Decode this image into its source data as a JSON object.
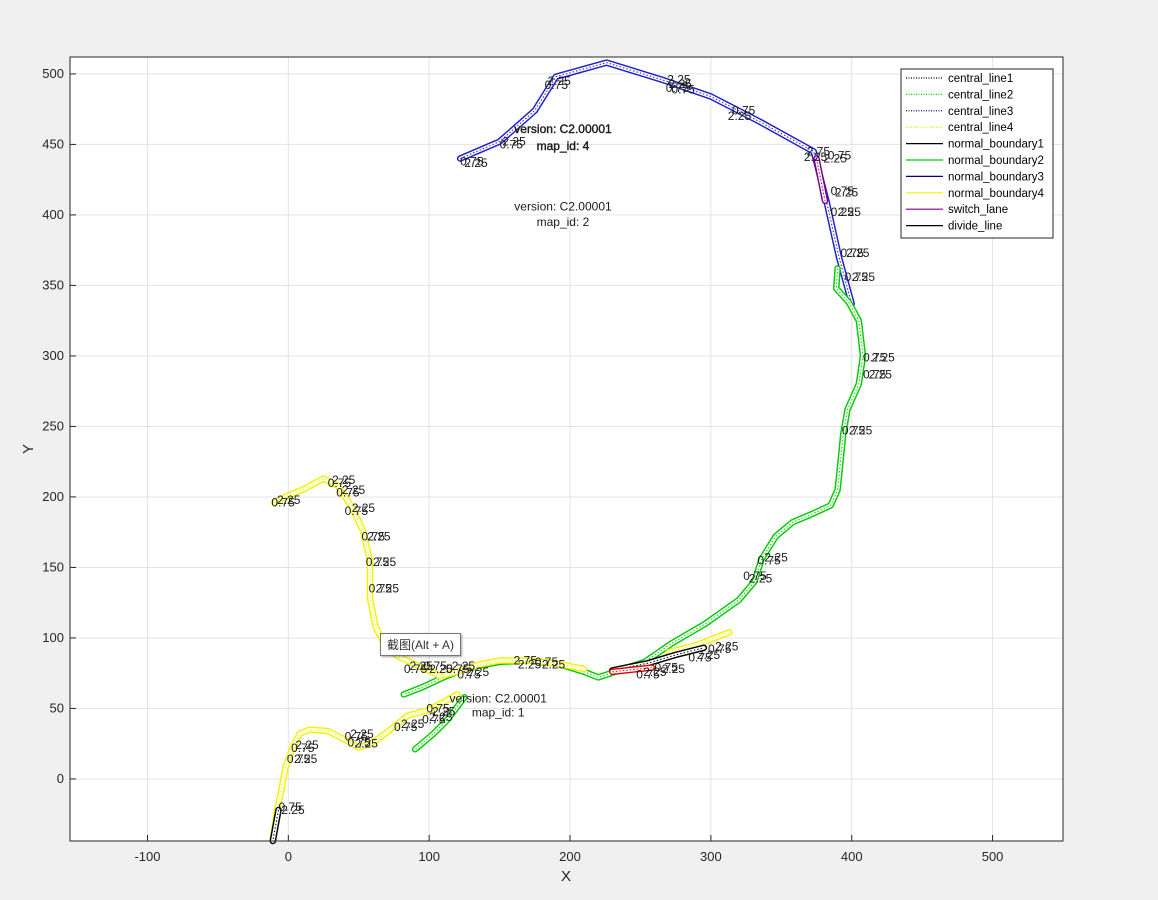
{
  "chart_data": {
    "type": "line",
    "xlabel": "X",
    "ylabel": "Y",
    "xlim": [
      -155,
      550
    ],
    "ylim": [
      -44,
      512
    ],
    "x_ticks": [
      -100,
      0,
      100,
      200,
      300,
      400,
      500
    ],
    "y_ticks": [
      0,
      50,
      100,
      150,
      200,
      250,
      300,
      350,
      400,
      450,
      500
    ],
    "grid": true,
    "legend_position": "top-right",
    "legend": [
      {
        "name": "central_line1",
        "color": "#000000",
        "style": "dotted"
      },
      {
        "name": "central_line2",
        "color": "#00cc00",
        "style": "dotted"
      },
      {
        "name": "central_line3",
        "color": "#000080",
        "style": "dotted"
      },
      {
        "name": "central_line4",
        "color": "#e6e600",
        "style": "dotted"
      },
      {
        "name": "normal_boundary1",
        "color": "#000000",
        "style": "solid"
      },
      {
        "name": "normal_boundary2",
        "color": "#00cc00",
        "style": "solid"
      },
      {
        "name": "normal_boundary3",
        "color": "#000080",
        "style": "solid"
      },
      {
        "name": "normal_boundary4",
        "color": "#f2f200",
        "style": "solid"
      },
      {
        "name": "switch_lane",
        "color": "#800080",
        "style": "solid"
      },
      {
        "name": "divide_line",
        "color": "#000000",
        "style": "solid"
      }
    ],
    "series": [
      {
        "color": "#1e1ecc",
        "points": [
          [
            122,
            440
          ],
          [
            150,
            452
          ],
          [
            175,
            474
          ],
          [
            190,
            498
          ],
          [
            226,
            508
          ],
          [
            265,
            496
          ],
          [
            300,
            484
          ],
          [
            335,
            466
          ],
          [
            373,
            445
          ],
          [
            382,
            410
          ],
          [
            391,
            370
          ],
          [
            400,
            337
          ]
        ]
      },
      {
        "color": "#00cc00",
        "points": [
          [
            390,
            362
          ],
          [
            389,
            348
          ],
          [
            398,
            338
          ],
          [
            405,
            325
          ],
          [
            408,
            300
          ],
          [
            405,
            280
          ],
          [
            397,
            262
          ],
          [
            394,
            245
          ],
          [
            392,
            225
          ],
          [
            390,
            205
          ],
          [
            385,
            194
          ],
          [
            372,
            188
          ],
          [
            358,
            182
          ],
          [
            346,
            172
          ],
          [
            336,
            156
          ],
          [
            331,
            140
          ],
          [
            320,
            127
          ],
          [
            296,
            110
          ],
          [
            272,
            96
          ],
          [
            253,
            83
          ],
          [
            232,
            76
          ],
          [
            220,
            72
          ],
          [
            210,
            76
          ],
          [
            190,
            82
          ],
          [
            170,
            84
          ],
          [
            150,
            83
          ],
          [
            128,
            79
          ],
          [
            110,
            72
          ],
          [
            95,
            65
          ],
          [
            82,
            60
          ]
        ]
      },
      {
        "color": "#00cc00",
        "points": [
          [
            125,
            58
          ],
          [
            113,
            42
          ],
          [
            103,
            32
          ],
          [
            90,
            21
          ]
        ]
      },
      {
        "color": "#f2f200",
        "points": [
          [
            -10,
            196
          ],
          [
            0,
            201
          ],
          [
            12,
            206
          ],
          [
            25,
            213
          ],
          [
            35,
            208
          ],
          [
            45,
            193
          ],
          [
            53,
            176
          ],
          [
            58,
            155
          ],
          [
            58,
            128
          ],
          [
            62,
            108
          ],
          [
            70,
            92
          ],
          [
            80,
            86
          ],
          [
            95,
            79
          ],
          [
            108,
            73
          ],
          [
            120,
            76
          ],
          [
            135,
            81
          ],
          [
            150,
            84
          ],
          [
            170,
            84
          ],
          [
            190,
            82
          ],
          [
            210,
            78
          ]
        ]
      },
      {
        "color": "#f2f200",
        "points": [
          [
            120,
            60
          ],
          [
            100,
            49
          ],
          [
            85,
            45
          ],
          [
            70,
            33
          ],
          [
            60,
            26
          ],
          [
            50,
            22
          ],
          [
            40,
            28
          ],
          [
            28,
            34
          ],
          [
            15,
            35
          ],
          [
            8,
            32
          ],
          [
            3,
            22
          ],
          [
            -2,
            8
          ],
          [
            -5,
            -8
          ],
          [
            -8,
            -22
          ],
          [
            -11,
            -44
          ]
        ]
      },
      {
        "color": "#f2f200",
        "points": [
          [
            270,
            90
          ],
          [
            290,
            95
          ],
          [
            313,
            104
          ]
        ]
      },
      {
        "color": "#000000",
        "points": [
          [
            -7,
            -22
          ],
          [
            -11,
            -44
          ]
        ]
      },
      {
        "color": "#000000",
        "points": [
          [
            230,
            77
          ],
          [
            255,
            82
          ],
          [
            275,
            88
          ],
          [
            295,
            93
          ]
        ]
      },
      {
        "color": "#e60000",
        "points": [
          [
            230,
            76
          ],
          [
            258,
            79
          ]
        ]
      },
      {
        "color": "#800080",
        "points": [
          [
            375,
            440
          ],
          [
            381,
            410
          ]
        ]
      }
    ],
    "annotations": [
      {
        "text": "version: C2.00001",
        "x": 195,
        "y": 461,
        "bold": true
      },
      {
        "text": "map_id: 4",
        "x": 195,
        "y": 449,
        "bold": true
      },
      {
        "text": "version: C2.00001",
        "x": 195,
        "y": 406,
        "bold": false
      },
      {
        "text": "map_id: 2",
        "x": 195,
        "y": 395,
        "bold": false
      },
      {
        "text": "version: C2.00001",
        "x": 149,
        "y": 57,
        "bold": false
      },
      {
        "text": "map_id: 1",
        "x": 149,
        "y": 47,
        "bold": false
      }
    ],
    "value_labels": [
      {
        "text": "0.75",
        "x": 122,
        "y": 438
      },
      {
        "text": "2.25",
        "x": 125,
        "y": 437
      },
      {
        "text": "0.75",
        "x": 150,
        "y": 450
      },
      {
        "text": "2.25",
        "x": 152,
        "y": 452
      },
      {
        "text": "0.75",
        "x": 182,
        "y": 492
      },
      {
        "text": "2.25",
        "x": 184,
        "y": 495
      },
      {
        "text": "0.75",
        "x": 268,
        "y": 490
      },
      {
        "text": "2.25",
        "x": 270,
        "y": 493
      },
      {
        "text": "0.75",
        "x": 272,
        "y": 489
      },
      {
        "text": "2.25",
        "x": 269,
        "y": 496
      },
      {
        "text": "0.75",
        "x": 315,
        "y": 474
      },
      {
        "text": "2.25",
        "x": 312,
        "y": 470
      },
      {
        "text": "2.75",
        "x": 368,
        "y": 445
      },
      {
        "text": "2.25",
        "x": 366,
        "y": 441
      },
      {
        "text": "0.75",
        "x": 383,
        "y": 442
      },
      {
        "text": "2.25",
        "x": 380,
        "y": 440
      },
      {
        "text": "0.75",
        "x": 385,
        "y": 417
      },
      {
        "text": "2.25",
        "x": 388,
        "y": 416
      },
      {
        "text": "0.25",
        "x": 385,
        "y": 402
      },
      {
        "text": "2.25",
        "x": 390,
        "y": 402
      },
      {
        "text": "0.75",
        "x": 392,
        "y": 373
      },
      {
        "text": "2.25",
        "x": 396,
        "y": 373
      },
      {
        "text": "0.75",
        "x": 395,
        "y": 356
      },
      {
        "text": "2.25",
        "x": 400,
        "y": 356
      },
      {
        "text": "0.75",
        "x": 408,
        "y": 299
      },
      {
        "text": "2.25",
        "x": 414,
        "y": 299
      },
      {
        "text": "0.75",
        "x": 408,
        "y": 287
      },
      {
        "text": "2.25",
        "x": 412,
        "y": 287
      },
      {
        "text": "0.75",
        "x": 393,
        "y": 247
      },
      {
        "text": "2.25",
        "x": 398,
        "y": 247
      },
      {
        "text": "0.75",
        "x": 323,
        "y": 144
      },
      {
        "text": "2.25",
        "x": 327,
        "y": 142
      },
      {
        "text": "0.75",
        "x": 333,
        "y": 155
      },
      {
        "text": "2.25",
        "x": 338,
        "y": 157
      },
      {
        "text": "0.75",
        "x": 28,
        "y": 210
      },
      {
        "text": "2.25",
        "x": 31,
        "y": 212
      },
      {
        "text": "0.75",
        "x": 34,
        "y": 203
      },
      {
        "text": "2.25",
        "x": 38,
        "y": 205
      },
      {
        "text": "0.75",
        "x": 40,
        "y": 190
      },
      {
        "text": "2.25",
        "x": 45,
        "y": 192
      },
      {
        "text": "0.75",
        "x": 52,
        "y": 172
      },
      {
        "text": "2.25",
        "x": 56,
        "y": 172
      },
      {
        "text": "0.75",
        "x": 55,
        "y": 154
      },
      {
        "text": "2.25",
        "x": 60,
        "y": 154
      },
      {
        "text": "0.75",
        "x": 57,
        "y": 135
      },
      {
        "text": "2.25",
        "x": 62,
        "y": 135
      },
      {
        "text": "0.75",
        "x": -12,
        "y": 196
      },
      {
        "text": "2.25",
        "x": -8,
        "y": 198
      },
      {
        "text": "0.75",
        "x": 2,
        "y": 22
      },
      {
        "text": "2.25",
        "x": 5,
        "y": 24
      },
      {
        "text": "0.75",
        "x": -1,
        "y": 14
      },
      {
        "text": "2.25",
        "x": 4,
        "y": 14
      },
      {
        "text": "0.75",
        "x": -7,
        "y": -20
      },
      {
        "text": "2.25",
        "x": -5,
        "y": -22
      },
      {
        "text": "0.75",
        "x": 40,
        "y": 30
      },
      {
        "text": "2.25",
        "x": 44,
        "y": 32
      },
      {
        "text": "0.75",
        "x": 42,
        "y": 26
      },
      {
        "text": "2.25",
        "x": 47,
        "y": 25
      },
      {
        "text": "0.75",
        "x": 75,
        "y": 37
      },
      {
        "text": "2.25",
        "x": 80,
        "y": 39
      },
      {
        "text": "0.75",
        "x": 95,
        "y": 42
      },
      {
        "text": "2.25",
        "x": 100,
        "y": 44
      },
      {
        "text": "0.75",
        "x": 98,
        "y": 50
      },
      {
        "text": "2.25",
        "x": 102,
        "y": 48
      },
      {
        "text": "0.75",
        "x": 82,
        "y": 78
      },
      {
        "text": "2.25",
        "x": 86,
        "y": 80
      },
      {
        "text": "0.75",
        "x": 96,
        "y": 80
      },
      {
        "text": "2.25",
        "x": 100,
        "y": 78
      },
      {
        "text": "0.75",
        "x": 112,
        "y": 78
      },
      {
        "text": "2.25",
        "x": 116,
        "y": 80
      },
      {
        "text": "0.75",
        "x": 120,
        "y": 74
      },
      {
        "text": "2.25",
        "x": 126,
        "y": 76
      },
      {
        "text": "2.75",
        "x": 160,
        "y": 84
      },
      {
        "text": "2.25",
        "x": 163,
        "y": 81
      },
      {
        "text": "0.75",
        "x": 175,
        "y": 83
      },
      {
        "text": "2.25",
        "x": 180,
        "y": 81
      },
      {
        "text": "0.75",
        "x": 247,
        "y": 74
      },
      {
        "text": "2.25",
        "x": 252,
        "y": 76
      },
      {
        "text": "0.75",
        "x": 260,
        "y": 79
      },
      {
        "text": "2.25",
        "x": 265,
        "y": 78
      },
      {
        "text": "0.75",
        "x": 284,
        "y": 86
      },
      {
        "text": "2.25",
        "x": 290,
        "y": 88
      },
      {
        "text": "0.75",
        "x": 298,
        "y": 92
      },
      {
        "text": "2.25",
        "x": 303,
        "y": 94
      }
    ]
  },
  "tooltip": {
    "text": "截图(Alt + A)"
  }
}
